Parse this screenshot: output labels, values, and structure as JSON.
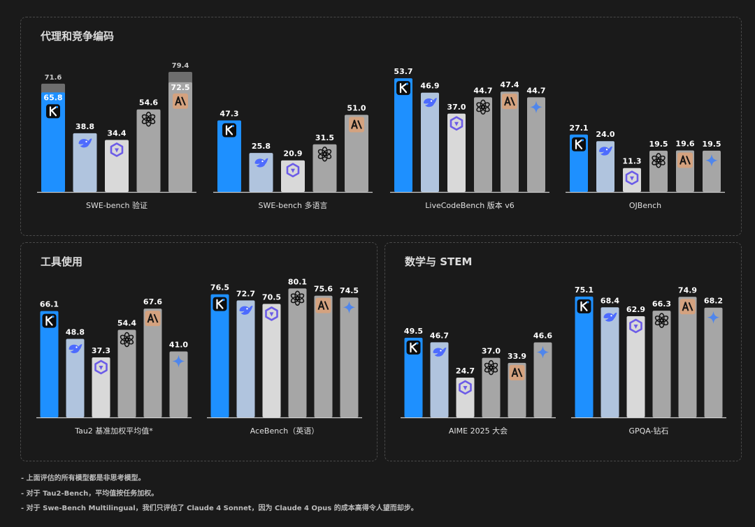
{
  "panels": [
    {
      "title": "代理和竞争编码"
    },
    {
      "title": "工具使用"
    },
    {
      "title": "数学与 STEM"
    }
  ],
  "colors": {
    "kimi": "#1e90ff",
    "deepseek": "#b0c4de",
    "qwen": "#d9d9d9",
    "openai": "#a6a6a6",
    "anthropic": "#a6a6a6",
    "anthropic_badge": "#d4a27f",
    "gemini": "#a6a6a6",
    "ext_bar": "#6e6e6e"
  },
  "chart_data": [
    {
      "type": "bar",
      "name": "SWE-bench 验证",
      "ylim": [
        0,
        90
      ],
      "bars": [
        {
          "model": "kimi",
          "value": 65.8,
          "ext": 71.6,
          "icon": "kimi-icon"
        },
        {
          "model": "deepseek",
          "value": 38.8,
          "icon": "deepseek-icon"
        },
        {
          "model": "qwen",
          "value": 34.4,
          "icon": "qwen-icon"
        },
        {
          "model": "openai",
          "value": 54.6,
          "icon": "openai-icon"
        },
        {
          "model": "anthropic",
          "value": 72.5,
          "ext": 79.4,
          "icon": "anthropic-icon"
        }
      ]
    },
    {
      "type": "bar",
      "name": "SWE-bench 多语言",
      "ylim": [
        0,
        90
      ],
      "bars": [
        {
          "model": "kimi",
          "value": 47.3,
          "icon": "kimi-icon"
        },
        {
          "model": "deepseek",
          "value": 25.8,
          "icon": "deepseek-icon"
        },
        {
          "model": "qwen",
          "value": 20.9,
          "icon": "qwen-icon"
        },
        {
          "model": "openai",
          "value": 31.5,
          "icon": "openai-icon"
        },
        {
          "model": "anthropic",
          "value": 51.0,
          "icon": "anthropic-icon"
        }
      ]
    },
    {
      "type": "bar",
      "name": "LiveCodeBench 版本 v6",
      "ylim": [
        0,
        60
      ],
      "bars": [
        {
          "model": "kimi",
          "value": 53.7,
          "icon": "kimi-icon"
        },
        {
          "model": "deepseek",
          "value": 46.9,
          "icon": "deepseek-icon"
        },
        {
          "model": "qwen",
          "value": 37.0,
          "icon": "qwen-icon"
        },
        {
          "model": "openai",
          "value": 44.7,
          "icon": "openai-icon"
        },
        {
          "model": "anthropic",
          "value": 47.4,
          "icon": "anthropic-icon"
        },
        {
          "model": "gemini",
          "value": 44.7,
          "icon": "gemini-icon"
        }
      ]
    },
    {
      "type": "bar",
      "name": "OJBench",
      "ylim": [
        0,
        60
      ],
      "bars": [
        {
          "model": "kimi",
          "value": 27.1,
          "icon": "kimi-icon"
        },
        {
          "model": "deepseek",
          "value": 24.0,
          "icon": "deepseek-icon"
        },
        {
          "model": "qwen",
          "value": 11.3,
          "icon": "qwen-icon"
        },
        {
          "model": "openai",
          "value": 19.5,
          "icon": "openai-icon"
        },
        {
          "model": "anthropic",
          "value": 19.6,
          "icon": "anthropic-icon"
        },
        {
          "model": "gemini",
          "value": 19.5,
          "icon": "gemini-icon"
        }
      ]
    },
    {
      "type": "bar",
      "name": "Tau2 基准加权平均值*",
      "ylim": [
        0,
        85
      ],
      "bars": [
        {
          "model": "kimi",
          "value": 66.1,
          "icon": "kimi-icon"
        },
        {
          "model": "deepseek",
          "value": 48.8,
          "icon": "deepseek-icon"
        },
        {
          "model": "qwen",
          "value": 37.3,
          "icon": "qwen-icon"
        },
        {
          "model": "openai",
          "value": 54.4,
          "icon": "openai-icon"
        },
        {
          "model": "anthropic",
          "value": 67.6,
          "icon": "anthropic-icon"
        },
        {
          "model": "gemini",
          "value": 41.0,
          "icon": "gemini-icon"
        }
      ]
    },
    {
      "type": "bar",
      "name": "AceBench（英语）",
      "ylim": [
        0,
        85
      ],
      "bars": [
        {
          "model": "kimi",
          "value": 76.5,
          "icon": "kimi-icon"
        },
        {
          "model": "deepseek",
          "value": 72.7,
          "icon": "deepseek-icon"
        },
        {
          "model": "qwen",
          "value": 70.5,
          "icon": "qwen-icon"
        },
        {
          "model": "openai",
          "value": 80.1,
          "icon": "openai-icon"
        },
        {
          "model": "anthropic",
          "value": 75.6,
          "icon": "anthropic-icon"
        },
        {
          "model": "gemini",
          "value": 74.5,
          "icon": "gemini-icon"
        }
      ]
    },
    {
      "type": "bar",
      "name": "AIME 2025 大会",
      "ylim": [
        0,
        85
      ],
      "bars": [
        {
          "model": "kimi",
          "value": 49.5,
          "icon": "kimi-icon"
        },
        {
          "model": "deepseek",
          "value": 46.7,
          "icon": "deepseek-icon"
        },
        {
          "model": "qwen",
          "value": 24.7,
          "icon": "qwen-icon"
        },
        {
          "model": "openai",
          "value": 37.0,
          "icon": "openai-icon"
        },
        {
          "model": "anthropic",
          "value": 33.9,
          "icon": "anthropic-icon"
        },
        {
          "model": "gemini",
          "value": 46.6,
          "icon": "gemini-icon"
        }
      ]
    },
    {
      "type": "bar",
      "name": "GPQA-钻石",
      "ylim": [
        0,
        85
      ],
      "bars": [
        {
          "model": "kimi",
          "value": 75.1,
          "icon": "kimi-icon"
        },
        {
          "model": "deepseek",
          "value": 68.4,
          "icon": "deepseek-icon"
        },
        {
          "model": "qwen",
          "value": 62.9,
          "icon": "qwen-icon"
        },
        {
          "model": "openai",
          "value": 66.3,
          "icon": "openai-icon"
        },
        {
          "model": "anthropic",
          "value": 74.9,
          "icon": "anthropic-icon"
        },
        {
          "model": "gemini",
          "value": 68.2,
          "icon": "gemini-icon"
        }
      ]
    }
  ],
  "footnotes": [
    "- 上面评估的所有模型都是非思考模型。",
    "- 对于 Tau2-Bench，平均值按任务加权。",
    "- 对于 Swe-Bench Multilingual，我们只评估了 Claude 4 Sonnet，因为 Claude 4 Opus 的成本高得令人望而却步。"
  ]
}
